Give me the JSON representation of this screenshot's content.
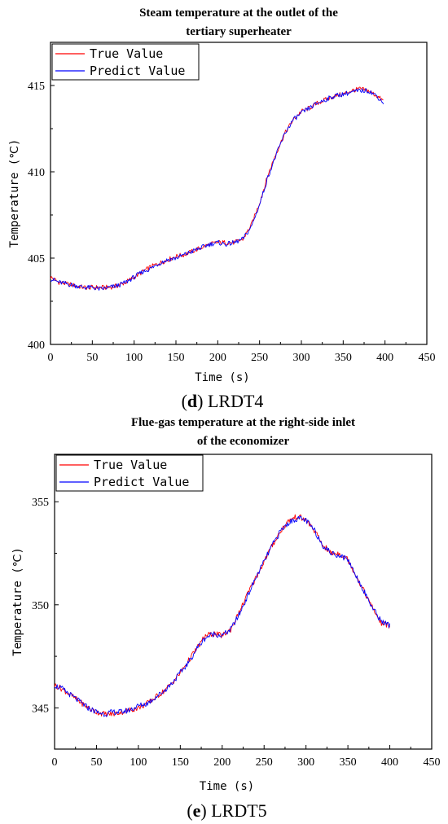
{
  "chart_data": [
    {
      "type": "line",
      "title_lines": [
        "Steam temperature at the outlet of the",
        "tertiary superheater"
      ],
      "xlabel": "Time (s)",
      "ylabel": "Temperature (℃)",
      "xlim": [
        0,
        450
      ],
      "ylim": [
        400,
        417.5
      ],
      "xticks": [
        0,
        50,
        100,
        150,
        200,
        250,
        300,
        350,
        400,
        450
      ],
      "yticks": [
        400,
        405,
        410,
        415
      ],
      "legend_position": "top-left",
      "caption_letter": "d",
      "caption_rest": " LRDT4",
      "series": [
        {
          "name": "True Value",
          "color": "#ff0000",
          "x": [
            0,
            10,
            20,
            30,
            40,
            50,
            60,
            70,
            80,
            90,
            100,
            110,
            120,
            130,
            140,
            150,
            160,
            170,
            180,
            190,
            200,
            210,
            220,
            230,
            240,
            250,
            260,
            270,
            280,
            290,
            300,
            310,
            320,
            330,
            340,
            350,
            360,
            370,
            380,
            390,
            398
          ],
          "y": [
            403.9,
            403.6,
            403.5,
            403.4,
            403.3,
            403.3,
            403.3,
            403.3,
            403.4,
            403.6,
            403.9,
            404.2,
            404.5,
            404.7,
            404.9,
            405.1,
            405.2,
            405.4,
            405.6,
            405.8,
            405.9,
            405.9,
            405.9,
            406.1,
            406.9,
            408.2,
            409.8,
            411.1,
            412.2,
            413.0,
            413.5,
            413.7,
            414.0,
            414.2,
            414.4,
            414.5,
            414.7,
            414.8,
            414.7,
            414.4,
            414.1
          ]
        },
        {
          "name": "Predict Value",
          "color": "#0000ff",
          "x": [
            0,
            10,
            20,
            30,
            40,
            50,
            60,
            70,
            80,
            90,
            100,
            110,
            120,
            130,
            140,
            150,
            160,
            170,
            180,
            190,
            200,
            210,
            220,
            230,
            240,
            250,
            260,
            270,
            280,
            290,
            300,
            310,
            320,
            330,
            340,
            350,
            360,
            370,
            380,
            390,
            398
          ],
          "y": [
            403.8,
            403.6,
            403.5,
            403.4,
            403.3,
            403.3,
            403.2,
            403.3,
            403.4,
            403.6,
            403.9,
            404.2,
            404.4,
            404.7,
            404.9,
            405.0,
            405.2,
            405.4,
            405.6,
            405.8,
            405.9,
            405.8,
            405.9,
            406.1,
            406.8,
            408.1,
            409.7,
            411.0,
            412.2,
            413.0,
            413.4,
            413.7,
            414.0,
            414.2,
            414.4,
            414.5,
            414.6,
            414.7,
            414.7,
            414.4,
            414.0
          ]
        }
      ]
    },
    {
      "type": "line",
      "title_lines": [
        "Flue-gas temperature at the right-side inlet",
        "of the economizer"
      ],
      "xlabel": "Time (s)",
      "ylabel": "Temperature (℃)",
      "xlim": [
        0,
        450
      ],
      "ylim": [
        343,
        357.3
      ],
      "xticks": [
        0,
        50,
        100,
        150,
        200,
        250,
        300,
        350,
        400,
        450
      ],
      "yticks": [
        345,
        350,
        355
      ],
      "legend_position": "top-left",
      "caption_letter": "e",
      "caption_rest": " LRDT5",
      "series": [
        {
          "name": "True Value",
          "color": "#ff0000",
          "x": [
            0,
            10,
            20,
            30,
            40,
            50,
            60,
            70,
            80,
            90,
            100,
            110,
            120,
            130,
            140,
            150,
            160,
            170,
            180,
            190,
            200,
            210,
            220,
            230,
            240,
            250,
            260,
            270,
            280,
            290,
            300,
            310,
            320,
            330,
            340,
            350,
            360,
            370,
            380,
            390,
            400
          ],
          "y": [
            346.1,
            345.9,
            345.6,
            345.3,
            345.0,
            344.8,
            344.7,
            344.7,
            344.8,
            344.9,
            345.0,
            345.2,
            345.5,
            345.8,
            346.2,
            346.7,
            347.3,
            347.9,
            348.5,
            348.6,
            348.5,
            348.8,
            349.6,
            350.5,
            351.3,
            352.1,
            352.9,
            353.6,
            354.1,
            354.3,
            354.1,
            353.6,
            352.9,
            352.5,
            352.5,
            352.2,
            351.4,
            350.6,
            349.8,
            349.1,
            349.0
          ]
        },
        {
          "name": "Predict Value",
          "color": "#0000ff",
          "x": [
            0,
            10,
            20,
            30,
            40,
            50,
            60,
            70,
            80,
            90,
            100,
            110,
            120,
            130,
            140,
            150,
            160,
            170,
            180,
            190,
            200,
            210,
            220,
            230,
            240,
            250,
            260,
            270,
            280,
            290,
            300,
            310,
            320,
            330,
            340,
            350,
            360,
            370,
            380,
            390,
            400
          ],
          "y": [
            346.1,
            345.9,
            345.6,
            345.3,
            345.0,
            344.8,
            344.7,
            344.8,
            344.8,
            344.9,
            345.1,
            345.2,
            345.5,
            345.8,
            346.2,
            346.7,
            347.2,
            347.9,
            348.4,
            348.6,
            348.5,
            348.8,
            349.5,
            350.4,
            351.3,
            352.1,
            352.9,
            353.6,
            354.0,
            354.2,
            354.1,
            353.6,
            352.9,
            352.5,
            352.4,
            352.2,
            351.4,
            350.6,
            349.8,
            349.2,
            349.0
          ]
        }
      ]
    }
  ]
}
